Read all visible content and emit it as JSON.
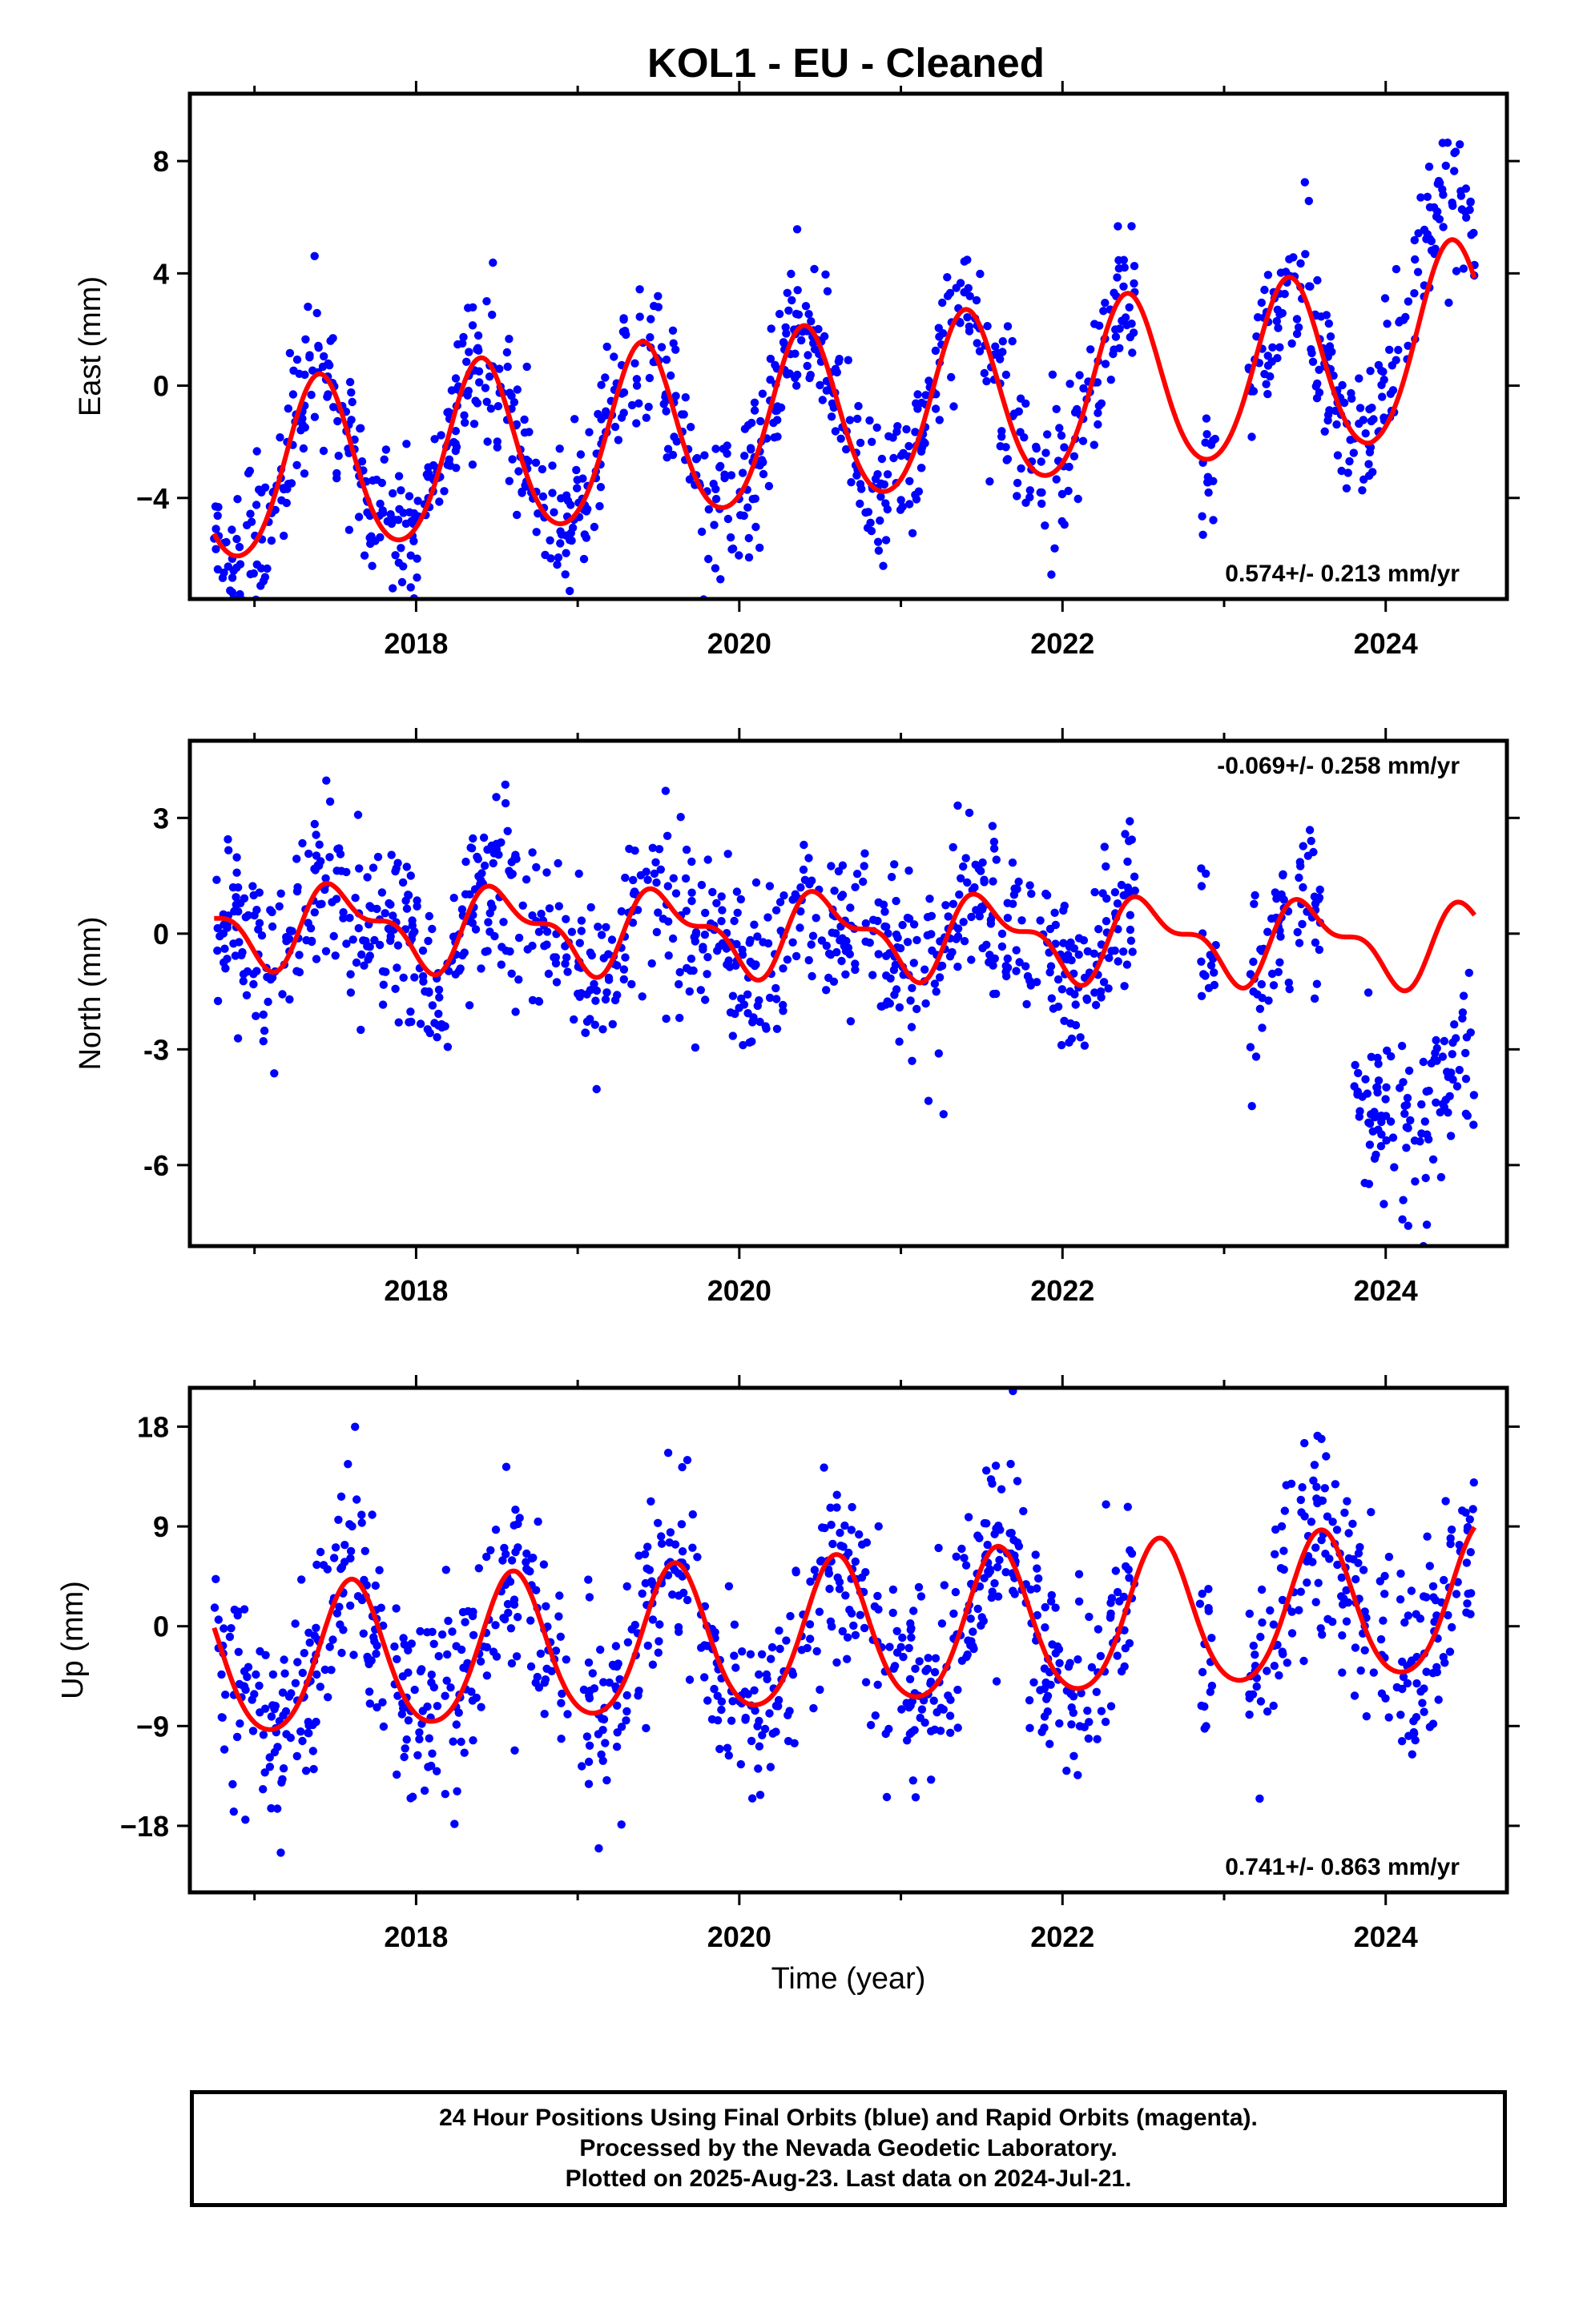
{
  "title": "KOL1  - EU - Cleaned",
  "x_axis_label": "Time (year)",
  "footer": {
    "line1": "24 Hour Positions Using Final Orbits (blue) and Rapid Orbits (magenta).",
    "line2": "Processed by the Nevada Geodetic Laboratory.",
    "line3": "Plotted on 2025-Aug-23. Last data on 2024-Jul-21."
  },
  "colors": {
    "points": "#0000ff",
    "fit": "#ff0000",
    "frame": "#000000"
  },
  "chart_data": [
    {
      "type": "scatter",
      "ylabel": "East (mm)",
      "xlim": [
        2016.6,
        2024.75
      ],
      "ylim": [
        -7.6,
        10.4
      ],
      "xticks": [
        2018,
        2020,
        2022,
        2024
      ],
      "yticks": [
        -4,
        0,
        4,
        8
      ],
      "rate_label": "0.574+/- 0.213 mm/yr",
      "rate_position": "bottom-right",
      "fit": {
        "t0": 2016.75,
        "t1": 2024.55,
        "offset": -1.2,
        "rate": 0.574,
        "annual_amp": 3.1,
        "annual_phase_year": 2017.4,
        "semiannual_amp": 0.3,
        "semiannual_phase_year": 2017.4,
        "end_trend_amp": 1.5,
        "end_trend_start": 2023.9
      },
      "series": [
        {
          "segments": [
            [
              2016.75,
              2022.45
            ],
            [
              2022.85,
              2022.95
            ],
            [
              2023.15,
              2024.55
            ]
          ],
          "noise": 1.3,
          "offset": 0.0,
          "offset_start": 2023.95,
          "offset_end_value": 1.8
        }
      ]
    },
    {
      "type": "scatter",
      "ylabel": "North (mm)",
      "xlim": [
        2016.6,
        2024.75
      ],
      "ylim": [
        -8.1,
        5.0
      ],
      "xticks": [
        2018,
        2020,
        2022,
        2024
      ],
      "yticks": [
        -6,
        -3,
        0,
        3
      ],
      "rate_label": "-0.069+/- 0.258 mm/yr",
      "rate_position": "top-right",
      "fit": {
        "t0": 2016.75,
        "t1": 2024.55,
        "offset": 0.0,
        "rate": -0.069,
        "annual_amp": 0.9,
        "annual_phase_year": 2017.55,
        "semiannual_amp": 0.45,
        "semiannual_phase_year": 2017.4,
        "end_trend_amp": 0.0,
        "end_trend_start": 2024.0
      },
      "series": [
        {
          "segments": [
            [
              2016.75,
              2022.45
            ],
            [
              2022.85,
              2022.95
            ],
            [
              2023.15,
              2023.6
            ],
            [
              2023.8,
              2024.55
            ]
          ],
          "noise": 1.1,
          "offset": 0.0,
          "offset_start": 2023.75,
          "offset_end_value": -4.1
        }
      ]
    },
    {
      "type": "scatter",
      "ylabel": "Up (mm)",
      "xlim": [
        2016.6,
        2024.75
      ],
      "ylim": [
        -24,
        21.5
      ],
      "xticks": [
        2018,
        2020,
        2022,
        2024
      ],
      "yticks": [
        -18,
        -9,
        0,
        9,
        18
      ],
      "rate_label": "0.741+/- 0.863 mm/yr",
      "rate_position": "bottom-right",
      "fit": {
        "t0": 2016.75,
        "t1": 2024.55,
        "offset": -1.0,
        "rate": 0.741,
        "annual_amp": 6.6,
        "annual_phase_year": 2017.6,
        "semiannual_amp": 0.8,
        "semiannual_phase_year": 2017.6,
        "end_trend_amp": 0.0,
        "end_trend_start": 2024.0
      },
      "series": [
        {
          "segments": [
            [
              2016.75,
              2022.45
            ],
            [
              2022.85,
              2022.95
            ],
            [
              2023.15,
              2024.55
            ]
          ],
          "noise": 4.5,
          "offset": 0.0,
          "offset_start": 2030,
          "offset_end_value": 0.0
        }
      ]
    }
  ]
}
